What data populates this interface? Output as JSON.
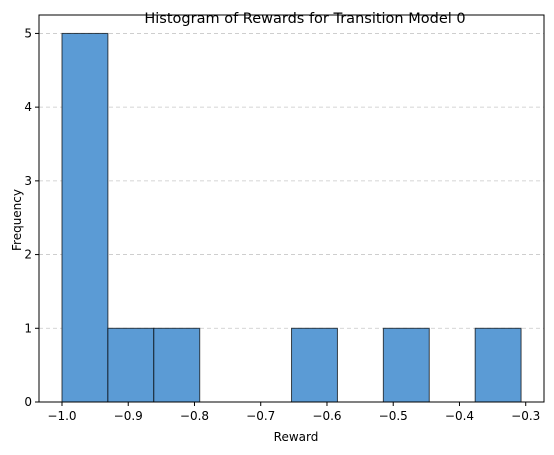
{
  "chart_data": {
    "type": "bar",
    "title": "Histogram of Rewards for Transition Model 0",
    "xlabel": "Reward",
    "ylabel": "Frequency",
    "bins": [
      {
        "start": -1.0,
        "end": -0.9307,
        "count": 5
      },
      {
        "start": -0.9307,
        "end": -0.8614,
        "count": 1
      },
      {
        "start": -0.8614,
        "end": -0.7921,
        "count": 1
      },
      {
        "start": -0.7921,
        "end": -0.7228,
        "count": 0
      },
      {
        "start": -0.7228,
        "end": -0.6535,
        "count": 0
      },
      {
        "start": -0.6535,
        "end": -0.5842,
        "count": 1
      },
      {
        "start": -0.5842,
        "end": -0.5149,
        "count": 0
      },
      {
        "start": -0.5149,
        "end": -0.4456,
        "count": 1
      },
      {
        "start": -0.4456,
        "end": -0.3763,
        "count": 0
      },
      {
        "start": -0.3763,
        "end": -0.307,
        "count": 1
      }
    ],
    "xlim": [
      -1.0347,
      -0.2724
    ],
    "ylim": [
      0,
      5.25
    ],
    "xticks": [
      -1.0,
      -0.9,
      -0.8,
      -0.7,
      -0.6,
      -0.5,
      -0.4,
      -0.3
    ],
    "xtick_labels": [
      "−1.0",
      "−0.9",
      "−0.8",
      "−0.7",
      "−0.6",
      "−0.5",
      "−0.4",
      "−0.3"
    ],
    "yticks": [
      0,
      1,
      2,
      3,
      4,
      5
    ],
    "ytick_labels": [
      "0",
      "1",
      "2",
      "3",
      "4",
      "5"
    ],
    "grid": "y-axis dashed",
    "bar_color": "#5b9bd5",
    "edge_color": "#000000"
  }
}
